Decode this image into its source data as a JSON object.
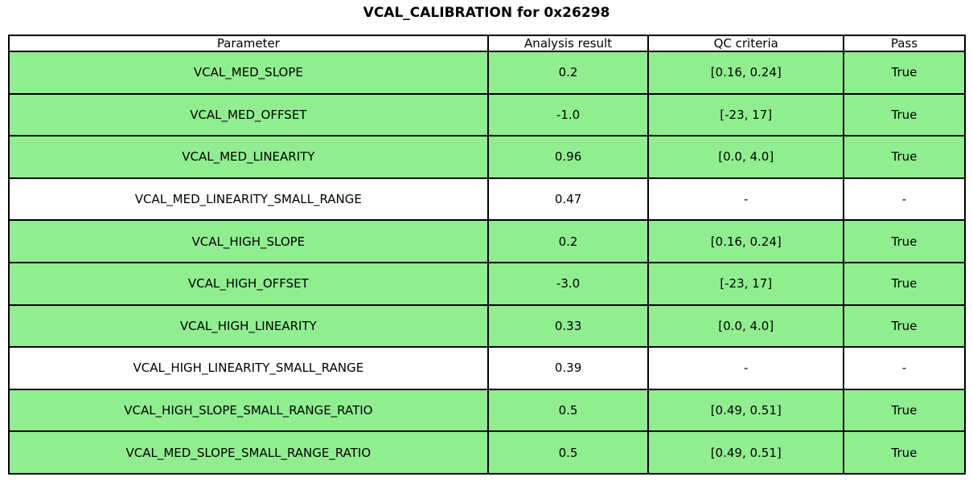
{
  "title": "VCAL_CALIBRATION for 0x26298",
  "colors": {
    "pass_row": "#90EE90",
    "neutral_row": "#ffffff",
    "border": "#000000",
    "text": "#000000"
  },
  "table": {
    "headers": [
      "Parameter",
      "Analysis result",
      "QC criteria",
      "Pass"
    ],
    "rows": [
      {
        "parameter": "VCAL_MED_SLOPE",
        "result": "0.2",
        "criteria": "[0.16, 0.24]",
        "pass": "True",
        "highlight": true
      },
      {
        "parameter": "VCAL_MED_OFFSET",
        "result": "-1.0",
        "criteria": "[-23, 17]",
        "pass": "True",
        "highlight": true
      },
      {
        "parameter": "VCAL_MED_LINEARITY",
        "result": "0.96",
        "criteria": "[0.0, 4.0]",
        "pass": "True",
        "highlight": true
      },
      {
        "parameter": "VCAL_MED_LINEARITY_SMALL_RANGE",
        "result": "0.47",
        "criteria": "-",
        "pass": "-",
        "highlight": false
      },
      {
        "parameter": "VCAL_HIGH_SLOPE",
        "result": "0.2",
        "criteria": "[0.16, 0.24]",
        "pass": "True",
        "highlight": true
      },
      {
        "parameter": "VCAL_HIGH_OFFSET",
        "result": "-3.0",
        "criteria": "[-23, 17]",
        "pass": "True",
        "highlight": true
      },
      {
        "parameter": "VCAL_HIGH_LINEARITY",
        "result": "0.33",
        "criteria": "[0.0, 4.0]",
        "pass": "True",
        "highlight": true
      },
      {
        "parameter": "VCAL_HIGH_LINEARITY_SMALL_RANGE",
        "result": "0.39",
        "criteria": "-",
        "pass": "-",
        "highlight": false
      },
      {
        "parameter": "VCAL_HIGH_SLOPE_SMALL_RANGE_RATIO",
        "result": "0.5",
        "criteria": "[0.49, 0.51]",
        "pass": "True",
        "highlight": true
      },
      {
        "parameter": "VCAL_MED_SLOPE_SMALL_RANGE_RATIO",
        "result": "0.5",
        "criteria": "[0.49, 0.51]",
        "pass": "True",
        "highlight": true
      }
    ]
  },
  "chart_data": {
    "type": "table",
    "title": "VCAL_CALIBRATION for 0x26298",
    "columns": [
      "Parameter",
      "Analysis result",
      "QC criteria",
      "Pass"
    ],
    "rows": [
      [
        "VCAL_MED_SLOPE",
        0.2,
        "[0.16, 0.24]",
        "True"
      ],
      [
        "VCAL_MED_OFFSET",
        -1.0,
        "[-23, 17]",
        "True"
      ],
      [
        "VCAL_MED_LINEARITY",
        0.96,
        "[0.0, 4.0]",
        "True"
      ],
      [
        "VCAL_MED_LINEARITY_SMALL_RANGE",
        0.47,
        "-",
        "-"
      ],
      [
        "VCAL_HIGH_SLOPE",
        0.2,
        "[0.16, 0.24]",
        "True"
      ],
      [
        "VCAL_HIGH_OFFSET",
        -3.0,
        "[-23, 17]",
        "True"
      ],
      [
        "VCAL_HIGH_LINEARITY",
        0.33,
        "[0.0, 4.0]",
        "True"
      ],
      [
        "VCAL_HIGH_LINEARITY_SMALL_RANGE",
        0.39,
        "-",
        "-"
      ],
      [
        "VCAL_HIGH_SLOPE_SMALL_RANGE_RATIO",
        0.5,
        "[0.49, 0.51]",
        "True"
      ],
      [
        "VCAL_MED_SLOPE_SMALL_RANGE_RATIO",
        0.5,
        "[0.49, 0.51]",
        "True"
      ]
    ],
    "row_highlight_color_when_pass": "#90EE90",
    "layout": "title centered above full-width bordered grid; all cells center-aligned"
  }
}
